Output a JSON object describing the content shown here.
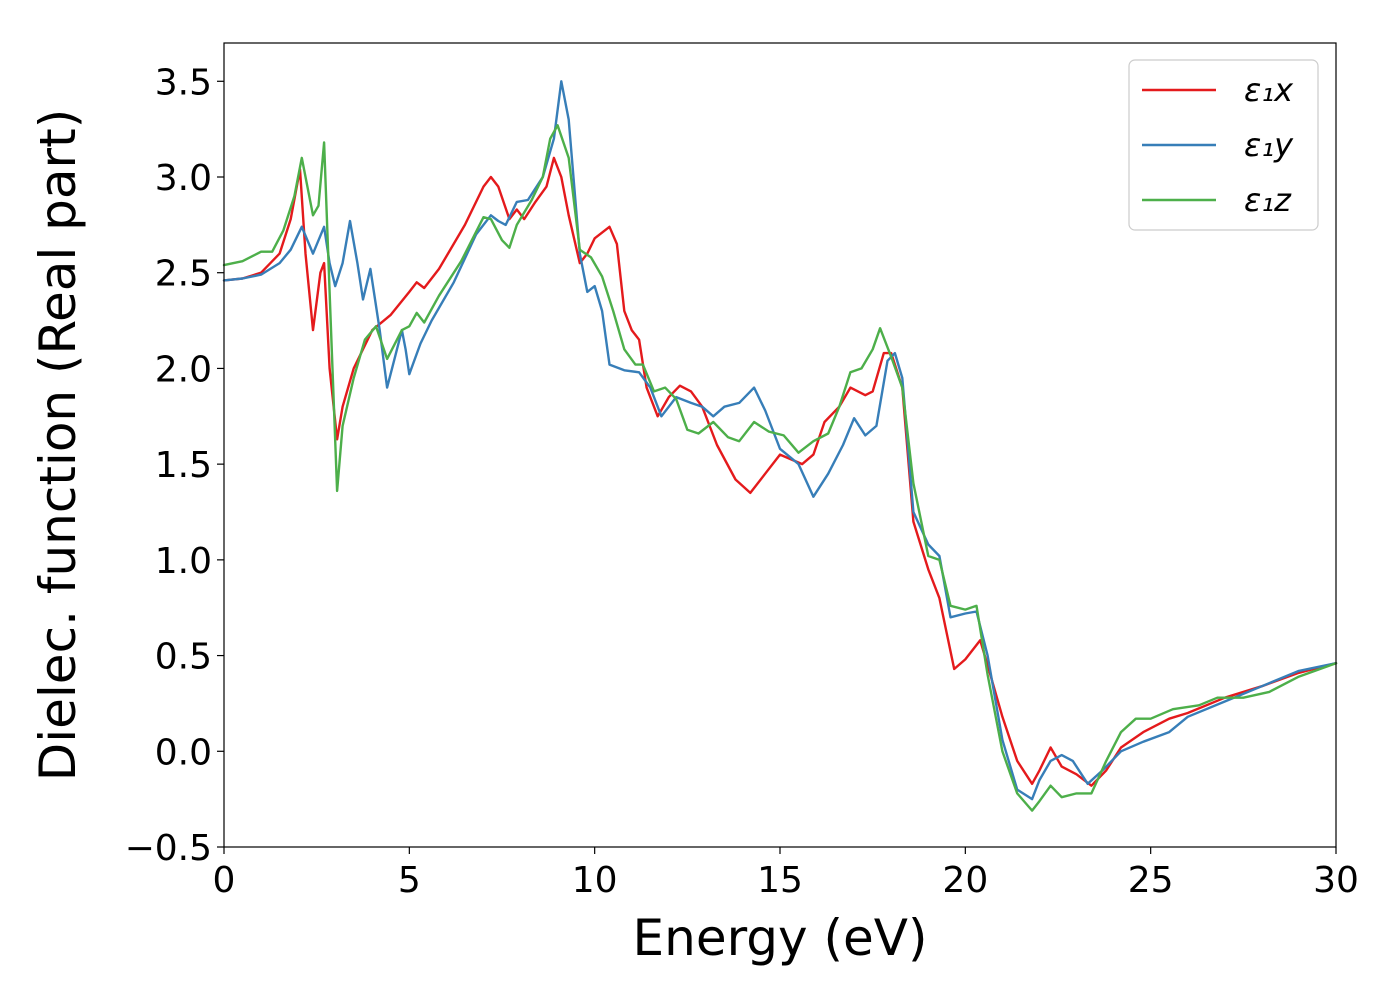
{
  "chart_data": {
    "type": "line",
    "title": "",
    "xlabel": "Energy (eV)",
    "ylabel": "Dielec. function (Real part)",
    "xlim": [
      0,
      30
    ],
    "ylim": [
      -0.5,
      3.7
    ],
    "xticks": [
      0,
      5,
      10,
      15,
      20,
      25,
      30
    ],
    "xtick_labels": [
      "0",
      "5",
      "10",
      "15",
      "20",
      "25",
      "30"
    ],
    "yticks": [
      -0.5,
      0.0,
      0.5,
      1.0,
      1.5,
      2.0,
      2.5,
      3.0,
      3.5
    ],
    "ytick_labels": [
      "−0.5",
      "0.0",
      "0.5",
      "1.0",
      "1.5",
      "2.0",
      "2.5",
      "3.0",
      "3.5"
    ],
    "grid": false,
    "legend_position": "top-right",
    "series": [
      {
        "name": "ε₁x",
        "color": "#e41a1c",
        "points": [
          [
            0,
            2.46
          ],
          [
            0.5,
            2.47
          ],
          [
            1.0,
            2.5
          ],
          [
            1.5,
            2.6
          ],
          [
            1.8,
            2.78
          ],
          [
            2.05,
            3.04
          ],
          [
            2.2,
            2.6
          ],
          [
            2.4,
            2.2
          ],
          [
            2.6,
            2.5
          ],
          [
            2.7,
            2.55
          ],
          [
            2.85,
            2.0
          ],
          [
            3.05,
            1.63
          ],
          [
            3.2,
            1.8
          ],
          [
            3.5,
            2.0
          ],
          [
            4.0,
            2.2
          ],
          [
            4.5,
            2.28
          ],
          [
            5.0,
            2.4
          ],
          [
            5.2,
            2.45
          ],
          [
            5.4,
            2.42
          ],
          [
            5.8,
            2.52
          ],
          [
            6.5,
            2.75
          ],
          [
            7.0,
            2.95
          ],
          [
            7.2,
            3.0
          ],
          [
            7.4,
            2.95
          ],
          [
            7.7,
            2.78
          ],
          [
            7.9,
            2.83
          ],
          [
            8.1,
            2.78
          ],
          [
            8.4,
            2.87
          ],
          [
            8.7,
            2.95
          ],
          [
            8.9,
            3.1
          ],
          [
            9.1,
            3.0
          ],
          [
            9.3,
            2.8
          ],
          [
            9.6,
            2.55
          ],
          [
            9.8,
            2.6
          ],
          [
            10.0,
            2.68
          ],
          [
            10.4,
            2.74
          ],
          [
            10.6,
            2.65
          ],
          [
            10.8,
            2.3
          ],
          [
            11.0,
            2.2
          ],
          [
            11.2,
            2.15
          ],
          [
            11.4,
            1.9
          ],
          [
            11.7,
            1.75
          ],
          [
            12.0,
            1.85
          ],
          [
            12.3,
            1.91
          ],
          [
            12.6,
            1.88
          ],
          [
            12.9,
            1.8
          ],
          [
            13.3,
            1.6
          ],
          [
            13.8,
            1.42
          ],
          [
            14.2,
            1.35
          ],
          [
            14.6,
            1.45
          ],
          [
            15.0,
            1.55
          ],
          [
            15.6,
            1.5
          ],
          [
            15.9,
            1.55
          ],
          [
            16.2,
            1.72
          ],
          [
            16.6,
            1.8
          ],
          [
            16.9,
            1.9
          ],
          [
            17.3,
            1.86
          ],
          [
            17.5,
            1.88
          ],
          [
            17.8,
            2.08
          ],
          [
            18.0,
            2.08
          ],
          [
            18.3,
            1.9
          ],
          [
            18.6,
            1.2
          ],
          [
            19.0,
            0.95
          ],
          [
            19.3,
            0.8
          ],
          [
            19.7,
            0.43
          ],
          [
            20.0,
            0.48
          ],
          [
            20.4,
            0.58
          ],
          [
            20.6,
            0.45
          ],
          [
            21.0,
            0.18
          ],
          [
            21.4,
            -0.05
          ],
          [
            21.8,
            -0.17
          ],
          [
            22.0,
            -0.1
          ],
          [
            22.3,
            0.02
          ],
          [
            22.6,
            -0.08
          ],
          [
            23.0,
            -0.12
          ],
          [
            23.4,
            -0.18
          ],
          [
            23.8,
            -0.1
          ],
          [
            24.2,
            0.02
          ],
          [
            24.8,
            0.1
          ],
          [
            25.5,
            0.17
          ],
          [
            26.0,
            0.2
          ],
          [
            27.0,
            0.28
          ],
          [
            28.0,
            0.34
          ],
          [
            29.0,
            0.41
          ],
          [
            30.0,
            0.46
          ]
        ]
      },
      {
        "name": "ε₁y",
        "color": "#377eb8",
        "points": [
          [
            0,
            2.46
          ],
          [
            0.5,
            2.47
          ],
          [
            1.0,
            2.49
          ],
          [
            1.5,
            2.55
          ],
          [
            1.8,
            2.62
          ],
          [
            2.1,
            2.74
          ],
          [
            2.4,
            2.6
          ],
          [
            2.7,
            2.74
          ],
          [
            2.85,
            2.55
          ],
          [
            3.0,
            2.43
          ],
          [
            3.2,
            2.55
          ],
          [
            3.4,
            2.77
          ],
          [
            3.6,
            2.55
          ],
          [
            3.75,
            2.36
          ],
          [
            3.95,
            2.52
          ],
          [
            4.2,
            2.2
          ],
          [
            4.4,
            1.9
          ],
          [
            4.6,
            2.05
          ],
          [
            4.8,
            2.2
          ],
          [
            4.9,
            2.1
          ],
          [
            5.0,
            1.97
          ],
          [
            5.3,
            2.13
          ],
          [
            5.6,
            2.25
          ],
          [
            6.2,
            2.45
          ],
          [
            6.8,
            2.7
          ],
          [
            7.2,
            2.8
          ],
          [
            7.4,
            2.77
          ],
          [
            7.6,
            2.75
          ],
          [
            7.9,
            2.87
          ],
          [
            8.2,
            2.88
          ],
          [
            8.6,
            3.0
          ],
          [
            8.9,
            3.2
          ],
          [
            9.1,
            3.5
          ],
          [
            9.3,
            3.3
          ],
          [
            9.6,
            2.6
          ],
          [
            9.8,
            2.4
          ],
          [
            10.0,
            2.43
          ],
          [
            10.2,
            2.3
          ],
          [
            10.4,
            2.02
          ],
          [
            10.8,
            1.99
          ],
          [
            11.2,
            1.98
          ],
          [
            11.5,
            1.9
          ],
          [
            11.8,
            1.75
          ],
          [
            12.2,
            1.85
          ],
          [
            12.6,
            1.82
          ],
          [
            12.9,
            1.8
          ],
          [
            13.2,
            1.75
          ],
          [
            13.5,
            1.8
          ],
          [
            13.9,
            1.82
          ],
          [
            14.3,
            1.9
          ],
          [
            14.6,
            1.78
          ],
          [
            15.0,
            1.58
          ],
          [
            15.5,
            1.5
          ],
          [
            15.9,
            1.33
          ],
          [
            16.3,
            1.45
          ],
          [
            16.7,
            1.6
          ],
          [
            17.0,
            1.74
          ],
          [
            17.3,
            1.65
          ],
          [
            17.6,
            1.7
          ],
          [
            17.9,
            2.04
          ],
          [
            18.1,
            2.08
          ],
          [
            18.3,
            1.95
          ],
          [
            18.6,
            1.25
          ],
          [
            19.0,
            1.08
          ],
          [
            19.3,
            1.02
          ],
          [
            19.6,
            0.7
          ],
          [
            20.0,
            0.72
          ],
          [
            20.3,
            0.73
          ],
          [
            20.6,
            0.5
          ],
          [
            21.0,
            0.06
          ],
          [
            21.4,
            -0.2
          ],
          [
            21.8,
            -0.25
          ],
          [
            22.0,
            -0.15
          ],
          [
            22.3,
            -0.05
          ],
          [
            22.6,
            -0.02
          ],
          [
            22.9,
            -0.05
          ],
          [
            23.3,
            -0.17
          ],
          [
            23.7,
            -0.1
          ],
          [
            24.2,
            0.0
          ],
          [
            24.8,
            0.05
          ],
          [
            25.5,
            0.1
          ],
          [
            26.0,
            0.18
          ],
          [
            27.0,
            0.26
          ],
          [
            28.0,
            0.34
          ],
          [
            29.0,
            0.42
          ],
          [
            30.0,
            0.46
          ]
        ]
      },
      {
        "name": "ε₁z",
        "color": "#4daf4a",
        "points": [
          [
            0,
            2.54
          ],
          [
            0.5,
            2.56
          ],
          [
            1.0,
            2.61
          ],
          [
            1.3,
            2.61
          ],
          [
            1.6,
            2.72
          ],
          [
            1.9,
            2.9
          ],
          [
            2.1,
            3.1
          ],
          [
            2.4,
            2.8
          ],
          [
            2.55,
            2.85
          ],
          [
            2.7,
            3.18
          ],
          [
            2.85,
            2.4
          ],
          [
            3.05,
            1.36
          ],
          [
            3.2,
            1.7
          ],
          [
            3.5,
            1.95
          ],
          [
            3.8,
            2.15
          ],
          [
            4.1,
            2.22
          ],
          [
            4.4,
            2.05
          ],
          [
            4.8,
            2.2
          ],
          [
            5.0,
            2.22
          ],
          [
            5.2,
            2.29
          ],
          [
            5.4,
            2.24
          ],
          [
            5.8,
            2.38
          ],
          [
            6.4,
            2.56
          ],
          [
            7.0,
            2.79
          ],
          [
            7.2,
            2.78
          ],
          [
            7.5,
            2.67
          ],
          [
            7.7,
            2.63
          ],
          [
            7.9,
            2.75
          ],
          [
            8.3,
            2.88
          ],
          [
            8.6,
            3.0
          ],
          [
            8.8,
            3.2
          ],
          [
            9.0,
            3.27
          ],
          [
            9.3,
            3.1
          ],
          [
            9.6,
            2.62
          ],
          [
            9.9,
            2.58
          ],
          [
            10.2,
            2.48
          ],
          [
            10.5,
            2.3
          ],
          [
            10.8,
            2.1
          ],
          [
            11.1,
            2.02
          ],
          [
            11.3,
            2.02
          ],
          [
            11.6,
            1.88
          ],
          [
            11.9,
            1.9
          ],
          [
            12.2,
            1.84
          ],
          [
            12.5,
            1.68
          ],
          [
            12.8,
            1.66
          ],
          [
            13.2,
            1.72
          ],
          [
            13.6,
            1.64
          ],
          [
            13.9,
            1.62
          ],
          [
            14.3,
            1.72
          ],
          [
            14.7,
            1.67
          ],
          [
            15.1,
            1.65
          ],
          [
            15.5,
            1.56
          ],
          [
            15.9,
            1.62
          ],
          [
            16.3,
            1.66
          ],
          [
            16.6,
            1.8
          ],
          [
            16.9,
            1.98
          ],
          [
            17.2,
            2.0
          ],
          [
            17.5,
            2.1
          ],
          [
            17.7,
            2.21
          ],
          [
            18.0,
            2.06
          ],
          [
            18.3,
            1.9
          ],
          [
            18.6,
            1.4
          ],
          [
            19.0,
            1.02
          ],
          [
            19.3,
            1.0
          ],
          [
            19.6,
            0.76
          ],
          [
            20.0,
            0.74
          ],
          [
            20.3,
            0.76
          ],
          [
            20.6,
            0.4
          ],
          [
            21.0,
            0.0
          ],
          [
            21.4,
            -0.22
          ],
          [
            21.8,
            -0.31
          ],
          [
            22.0,
            -0.26
          ],
          [
            22.3,
            -0.18
          ],
          [
            22.6,
            -0.24
          ],
          [
            23.0,
            -0.22
          ],
          [
            23.4,
            -0.22
          ],
          [
            23.8,
            -0.05
          ],
          [
            24.2,
            0.1
          ],
          [
            24.6,
            0.17
          ],
          [
            25.0,
            0.17
          ],
          [
            25.6,
            0.22
          ],
          [
            26.3,
            0.24
          ],
          [
            26.8,
            0.28
          ],
          [
            27.5,
            0.28
          ],
          [
            28.2,
            0.31
          ],
          [
            29.0,
            0.39
          ],
          [
            30.0,
            0.46
          ]
        ]
      }
    ]
  }
}
